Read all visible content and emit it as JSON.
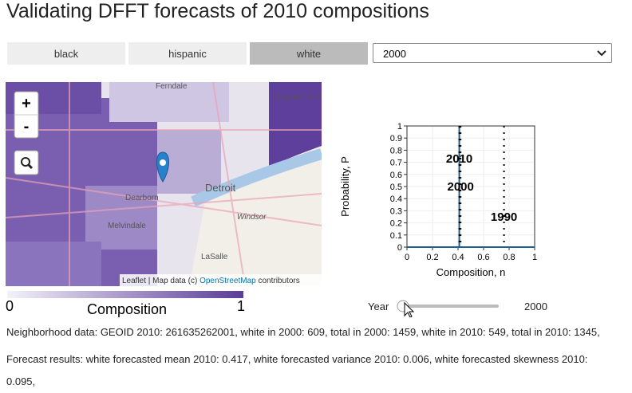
{
  "header": {
    "title": "Validating DFFT forecasts of 2010 compositions"
  },
  "controls": {
    "buttons": [
      "black",
      "hispanic",
      "white"
    ],
    "selected": 2,
    "select_value": "2000"
  },
  "map": {
    "zoom_in": "+",
    "zoom_out": "-",
    "places": [
      "Ferndale",
      "Detroit",
      "Windsor",
      "LaSalle",
      "Dearborn",
      "Melvindale",
      "Grosse Pointe"
    ],
    "attribution_prefix": "Leaflet | Map data (c) ",
    "attribution_link": "OpenStreetMap",
    "attribution_suffix": " contributors"
  },
  "colorbar": {
    "min": "0",
    "max": "1",
    "label": "Composition"
  },
  "plot": {
    "xlabel": "Composition, n",
    "ylabel": "Probability, P",
    "xlim": [
      0,
      1
    ],
    "ylim": [
      0,
      1
    ],
    "xticks": [
      0,
      0.2,
      0.4,
      0.6,
      0.8,
      1
    ],
    "yticks": [
      0,
      0.1,
      0.2,
      0.3,
      0.4,
      0.5,
      0.6,
      0.7,
      0.8,
      0.9,
      1
    ],
    "grid": true,
    "distribution": {
      "color": "#1f5f8b",
      "x": [
        0,
        0.41,
        0.41,
        0.41,
        1
      ],
      "values": [
        0,
        0,
        1,
        0,
        0
      ]
    },
    "markers": [
      {
        "label": "2010",
        "x": 0.41,
        "style": "dotted"
      },
      {
        "label": "2000",
        "x": 0.42,
        "style": "dotted"
      },
      {
        "label": "1990",
        "x": 0.76,
        "style": "dotted"
      }
    ]
  },
  "slider": {
    "label": "Year",
    "value": "2000"
  },
  "details": {
    "neighborhood": "Neighborhood data: GEOID 2010: 261635262001, white in 2000: 609, total in 2000: 1459, white in 2010: 549, total in 2010: 1345,",
    "forecast": "Forecast results: white forecasted mean 2010: 0.417, white forecasted variance 2010: 0.006, white forecasted skewness 2010: 0.095,"
  }
}
